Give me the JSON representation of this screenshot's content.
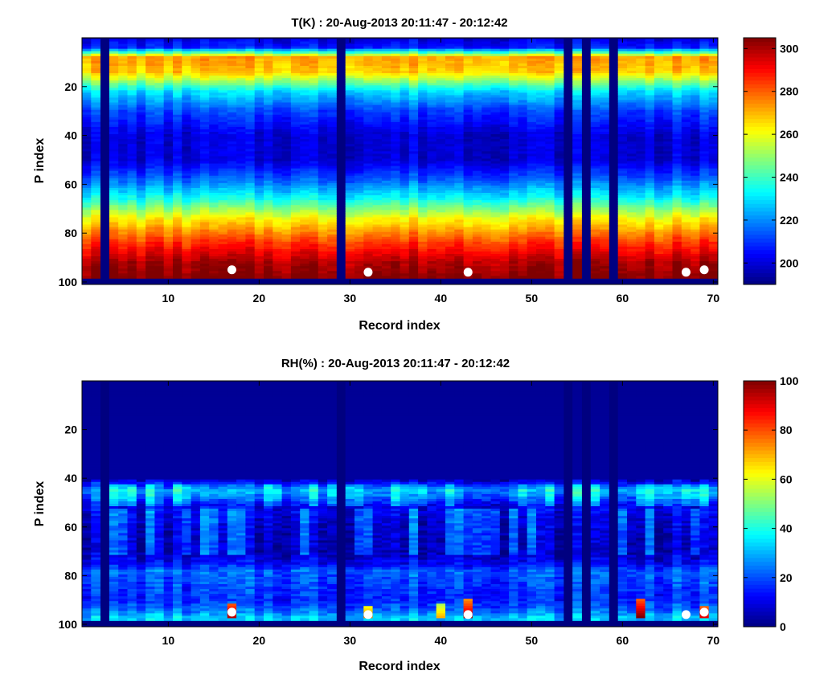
{
  "chart_data": [
    {
      "type": "heatmap",
      "title": "T(K) : 20-Aug-2013 20:11:47 - 20:12:42",
      "xlabel": "Record index",
      "ylabel": "P index",
      "xlim": [
        0.5,
        70.5
      ],
      "ylim": [
        0,
        101
      ],
      "xticks": [
        10,
        20,
        30,
        40,
        50,
        60,
        70
      ],
      "yticks": [
        20,
        40,
        60,
        80,
        100
      ],
      "n_records": 70,
      "n_levels": 98,
      "gap_records": [
        3,
        29,
        54,
        56,
        59
      ],
      "colorbar": {
        "min": 190,
        "max": 305,
        "ticks": [
          200,
          220,
          240,
          260,
          280,
          300
        ]
      },
      "profile_t": [
        [
          0,
          200
        ],
        [
          4,
          208
        ],
        [
          8,
          272
        ],
        [
          14,
          268
        ],
        [
          22,
          230
        ],
        [
          30,
          212
        ],
        [
          40,
          200
        ],
        [
          50,
          200
        ],
        [
          58,
          215
        ],
        [
          66,
          235
        ],
        [
          74,
          262
        ],
        [
          84,
          285
        ],
        [
          92,
          300
        ],
        [
          98,
          305
        ]
      ],
      "markers": [
        {
          "x": 17,
          "y": 95
        },
        {
          "x": 32,
          "y": 96
        },
        {
          "x": 43,
          "y": 96
        },
        {
          "x": 67,
          "y": 96
        },
        {
          "x": 69,
          "y": 95
        }
      ]
    },
    {
      "type": "heatmap",
      "title": "RH(%) : 20-Aug-2013 20:11:47 - 20:12:42",
      "xlabel": "Record index",
      "ylabel": "P index",
      "xlim": [
        0.5,
        70.5
      ],
      "ylim": [
        0,
        101
      ],
      "xticks": [
        10,
        20,
        30,
        40,
        50,
        60,
        70
      ],
      "yticks": [
        20,
        40,
        60,
        80,
        100
      ],
      "n_records": 70,
      "n_levels": 98,
      "gap_records": [
        3,
        29,
        54,
        56,
        59
      ],
      "colorbar": {
        "min": 0,
        "max": 100,
        "ticks": [
          0,
          20,
          40,
          60,
          80,
          100
        ]
      },
      "profile_rh": [
        [
          0,
          2
        ],
        [
          40,
          3
        ],
        [
          42,
          14
        ],
        [
          45,
          28
        ],
        [
          48,
          22
        ],
        [
          51,
          12
        ],
        [
          60,
          8
        ],
        [
          70,
          6
        ],
        [
          75,
          12
        ],
        [
          78,
          22
        ],
        [
          85,
          18
        ],
        [
          90,
          16
        ],
        [
          94,
          22
        ],
        [
          97,
          32
        ]
      ],
      "hot_cells": [
        {
          "x": 17,
          "y0": 92,
          "y1": 97,
          "v": 95
        },
        {
          "x": 32,
          "y0": 93,
          "y1": 97,
          "v": 75
        },
        {
          "x": 40,
          "y0": 92,
          "y1": 97,
          "v": 70
        },
        {
          "x": 43,
          "y0": 90,
          "y1": 97,
          "v": 95
        },
        {
          "x": 62,
          "y0": 90,
          "y1": 97,
          "v": 100
        },
        {
          "x": 69,
          "y0": 93,
          "y1": 97,
          "v": 90
        }
      ],
      "markers": [
        {
          "x": 17,
          "y": 95
        },
        {
          "x": 32,
          "y": 96
        },
        {
          "x": 43,
          "y": 96
        },
        {
          "x": 67,
          "y": 96
        },
        {
          "x": 69,
          "y": 95
        }
      ]
    }
  ]
}
